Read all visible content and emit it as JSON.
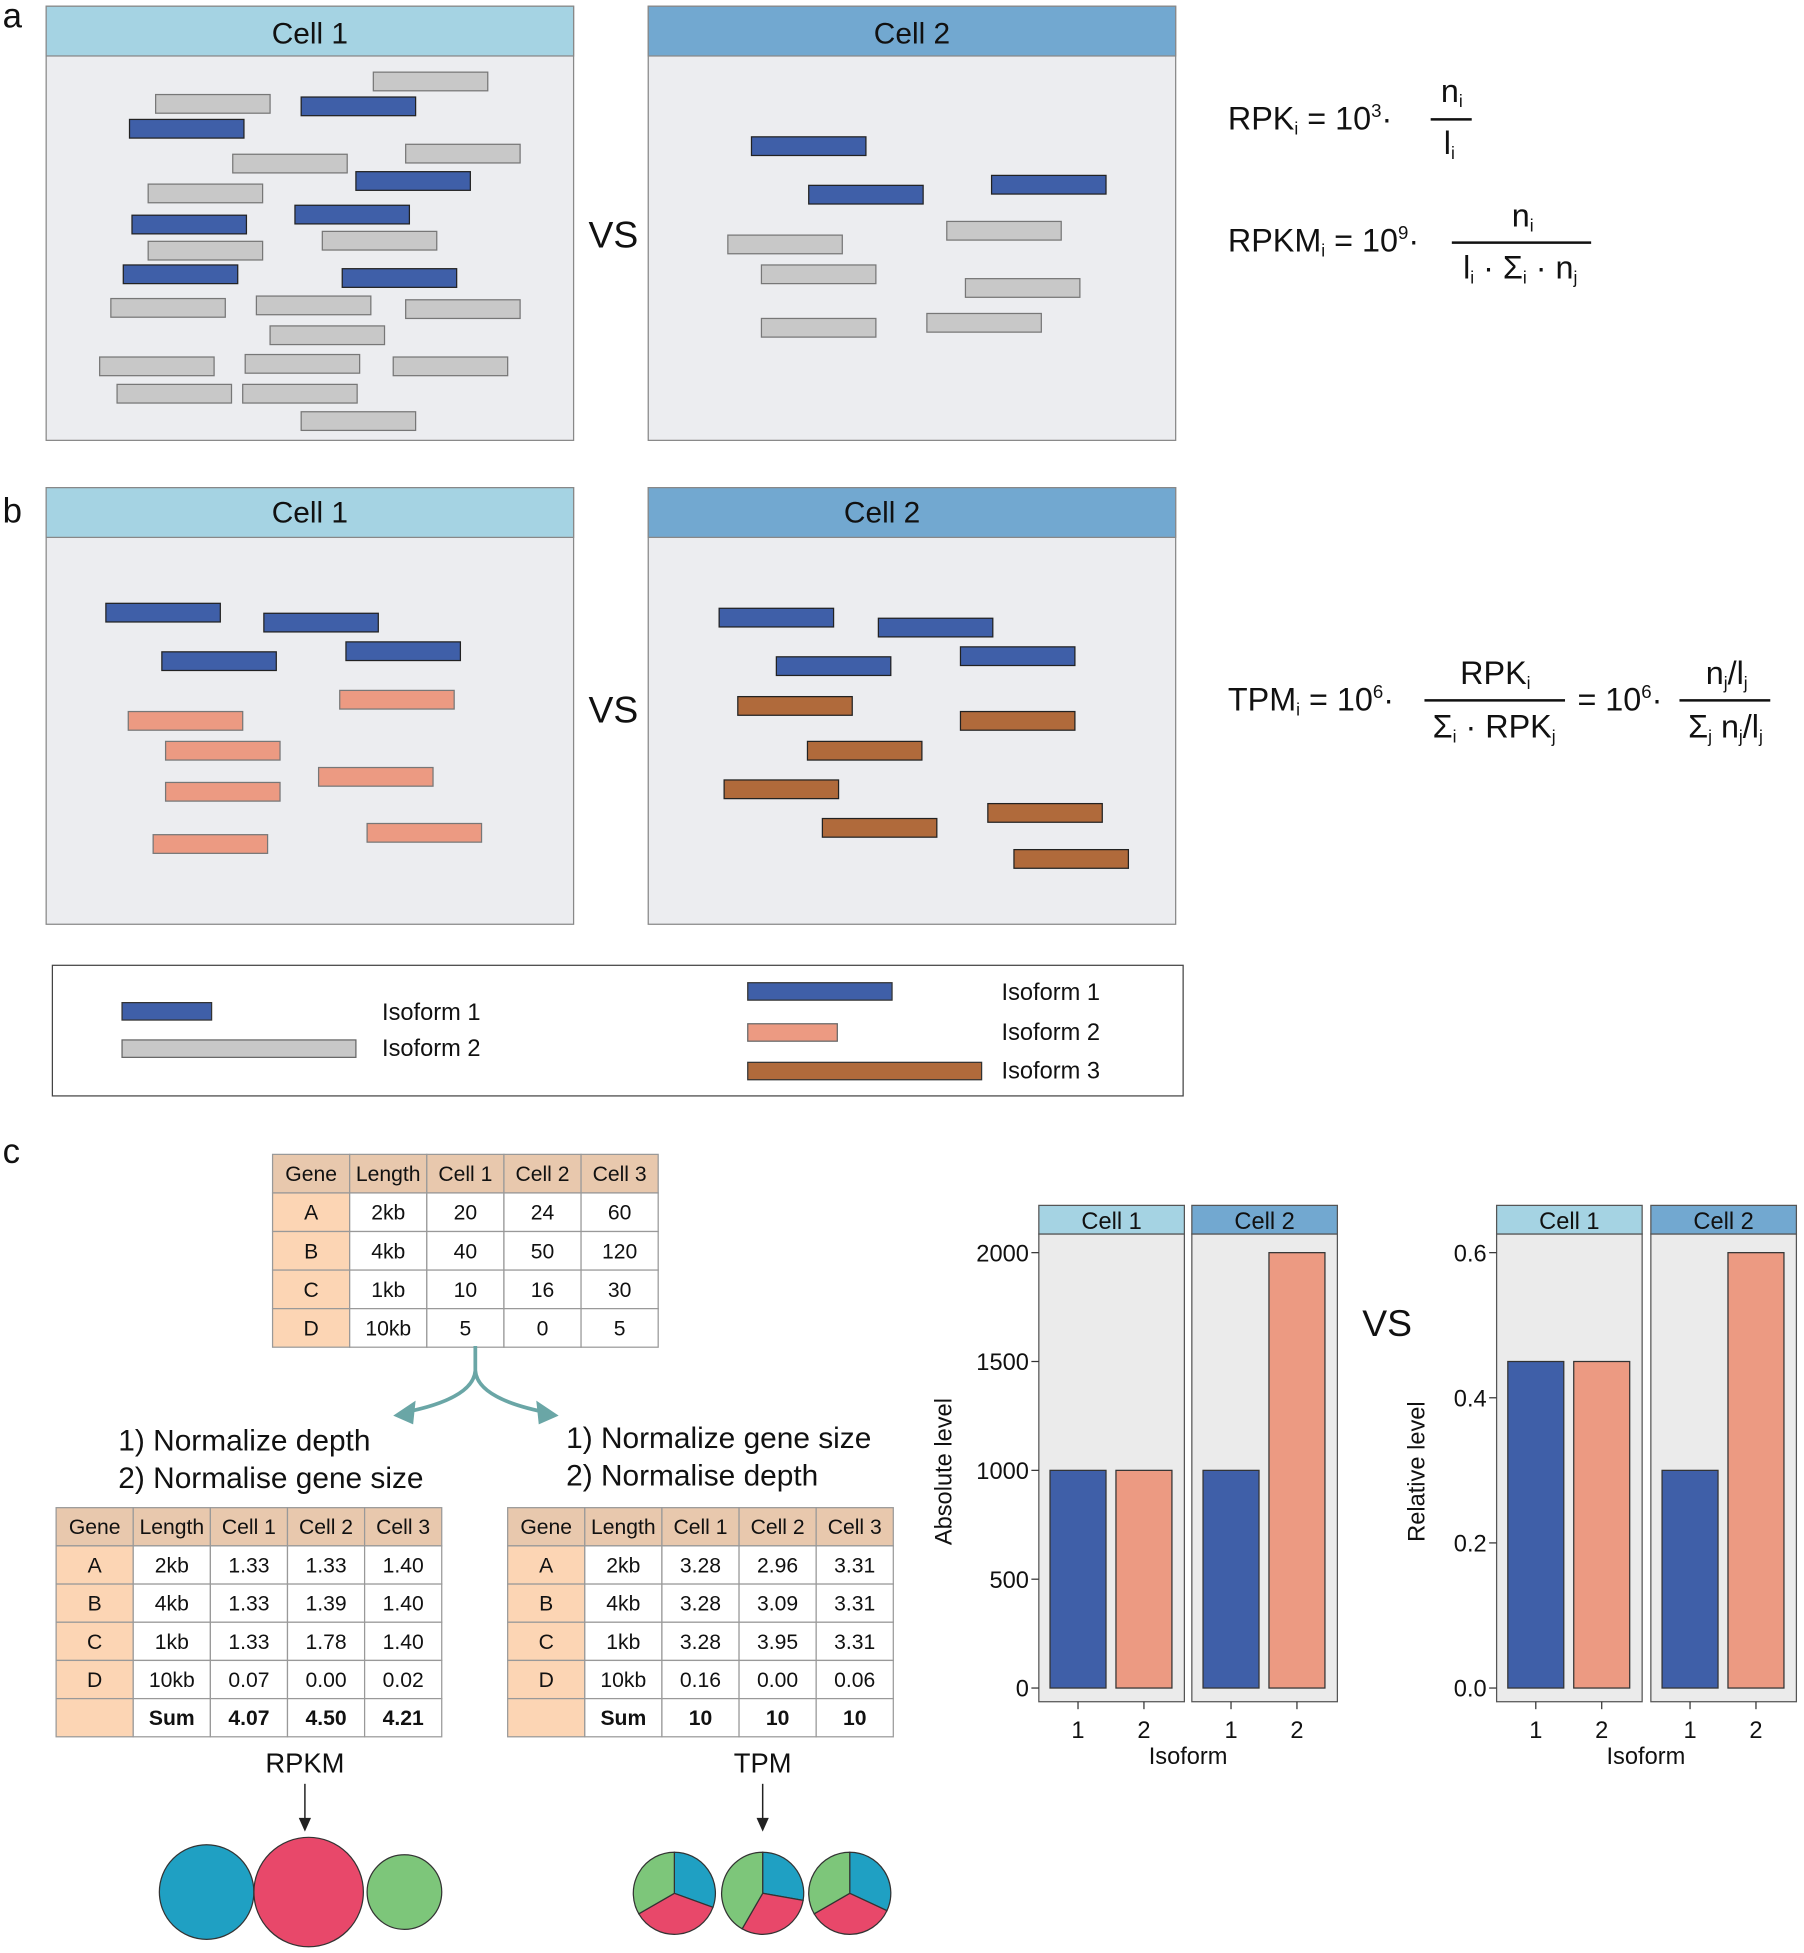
{
  "panel_labels": {
    "a": "a",
    "b": "b",
    "c": "c"
  },
  "panel_a": {
    "cell1": "Cell 1",
    "cell2": "Cell 2",
    "vs": "VS"
  },
  "panel_b": {
    "cell1": "Cell 1",
    "cell2": "Cell 2",
    "vs": "VS"
  },
  "formulas": {
    "rpk": {
      "lhs": "RPK",
      "sub": "i",
      "eq": " = 10",
      "exp": "3",
      "dot": "·",
      "num": "n",
      "num_sub": "i",
      "den": "l",
      "den_sub": "i"
    },
    "rpkm": {
      "lhs": "RPKM",
      "sub": "i",
      "eq": " = 10",
      "exp": "9",
      "dot": "·",
      "num": "n",
      "num_sub": "i",
      "den": "l",
      "den_sub": "i",
      "den2": " · Σ",
      "den2_sub": "i",
      "den3": " · n",
      "den3_sub": "j"
    },
    "tpm": {
      "lhs": "TPM",
      "sub": "i",
      "eq": " = 10",
      "exp": "6",
      "dot": "·",
      "num": "RPK",
      "num_sub": "i",
      "den": "Σ",
      "den_sub": "i",
      "den2": " · RPK",
      "den2_sub": "j",
      "eq2": "= 10",
      "exp2": "6",
      "num_b": "n",
      "num_b_sub": "j",
      "num_b2": "/l",
      "num_b2_sub": "j",
      "den_b": "Σ",
      "den_b_sub": "j",
      "den_b2": " n",
      "den_b2_sub": "j",
      "den_b3": "/l",
      "den_b3_sub": "j"
    }
  },
  "legend": {
    "left": [
      "Isoform 1",
      "Isoform 2"
    ],
    "right": [
      "Isoform 1",
      "Isoform 2",
      "Isoform 3"
    ]
  },
  "tables": {
    "headers": [
      "Gene",
      "Length",
      "Cell 1",
      "Cell 2",
      "Cell 3"
    ],
    "raw": [
      [
        "A",
        "2kb",
        "20",
        "24",
        "60"
      ],
      [
        "B",
        "4kb",
        "40",
        "50",
        "120"
      ],
      [
        "C",
        "1kb",
        "10",
        "16",
        "30"
      ],
      [
        "D",
        "10kb",
        "5",
        "0",
        "5"
      ]
    ],
    "rpkm": [
      [
        "A",
        "2kb",
        "1.33",
        "1.33",
        "1.40"
      ],
      [
        "B",
        "4kb",
        "1.33",
        "1.39",
        "1.40"
      ],
      [
        "C",
        "1kb",
        "1.33",
        "1.78",
        "1.40"
      ],
      [
        "D",
        "10kb",
        "0.07",
        "0.00",
        "0.02"
      ],
      [
        "",
        "Sum",
        "4.07",
        "4.50",
        "4.21"
      ]
    ],
    "tpm": [
      [
        "A",
        "2kb",
        "3.28",
        "2.96",
        "3.31"
      ],
      [
        "B",
        "4kb",
        "3.28",
        "3.09",
        "3.31"
      ],
      [
        "C",
        "1kb",
        "3.28",
        "3.95",
        "3.31"
      ],
      [
        "D",
        "10kb",
        "0.16",
        "0.00",
        "0.06"
      ],
      [
        "",
        "Sum",
        "10",
        "10",
        "10"
      ]
    ]
  },
  "steps": {
    "left": [
      "1) Normalize depth",
      "2) Normalise gene size"
    ],
    "right": [
      "1) Normalize gene size",
      "2) Normalise depth"
    ]
  },
  "methods": {
    "rpkm": "RPKM",
    "tpm": "TPM"
  },
  "colors": {
    "isoform1": "#3f5fa8",
    "isoform2_a": "#c8c8c8",
    "isoform2_b": "#ec9a82",
    "isoform3": "#b06a3b",
    "cell1_header": "#a5d3e3",
    "cell2_header": "#72a8d0",
    "gene_a": "#1fa0c3",
    "gene_b": "#e8486a",
    "gene_c": "#7dc67a"
  },
  "vs_c": "VS",
  "chart_data": [
    {
      "type": "bar",
      "facets": [
        "Cell 1",
        "Cell 2"
      ],
      "categories": [
        "1",
        "2"
      ],
      "xlabel": "Isoform",
      "ylabel": "Absolute level",
      "ylim": [
        0,
        2000
      ],
      "yticks": [
        "0",
        "500",
        "1000",
        "1500",
        "2000"
      ],
      "ytick_values": [
        0,
        500,
        1000,
        1500,
        2000
      ],
      "values": [
        [
          1000,
          1000
        ],
        [
          1000,
          2000
        ]
      ]
    },
    {
      "type": "bar",
      "facets": [
        "Cell 1",
        "Cell 2"
      ],
      "categories": [
        "1",
        "2"
      ],
      "xlabel": "Isoform",
      "ylabel": "Relative level",
      "ylim": [
        0,
        0.6
      ],
      "yticks": [
        "0.0",
        "0.2",
        "0.4",
        "0.6"
      ],
      "ytick_values": [
        0,
        0.2,
        0.4,
        0.6
      ],
      "values": [
        [
          0.45,
          0.45
        ],
        [
          0.3,
          0.6
        ]
      ]
    }
  ]
}
